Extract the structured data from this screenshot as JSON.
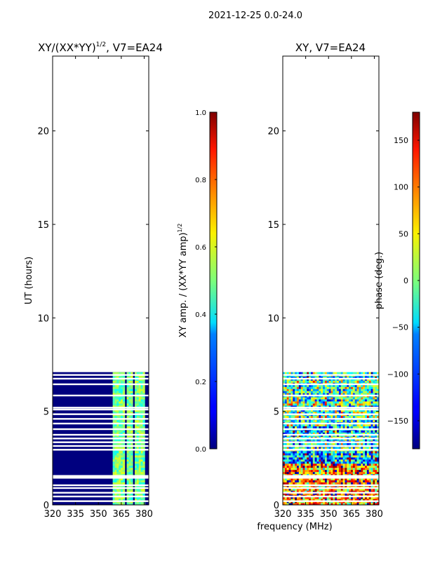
{
  "figure": {
    "suptitle": "2021-12-25 0.0-24.0",
    "shared_xlabel": "frequency (MHz)"
  },
  "chart_data": [
    {
      "type": "heatmap",
      "title_main": "XY/(XX*YY)",
      "title_sup": "1/2",
      "title_rest": ", V7=EA24",
      "ylabel": "UT (hours)",
      "xlim": [
        320,
        383
      ],
      "ylim": [
        0,
        24
      ],
      "xticks": [
        320,
        335,
        350,
        365,
        380
      ],
      "yticks": [
        0,
        5,
        10,
        15,
        20
      ],
      "data_extent_hours": [
        0,
        7.1
      ],
      "background_color": "#00007f",
      "flagged_hours": [
        0.2,
        0.45,
        0.65,
        0.9,
        1.05,
        1.45,
        1.5,
        1.55,
        2.95,
        3.15,
        3.35,
        3.55,
        3.75,
        4.05,
        4.35,
        4.6,
        4.85,
        5.1,
        5.2,
        5.85,
        6.45,
        6.75,
        6.95
      ],
      "bright_freq_bands_mhz": [
        [
          360,
          364
        ],
        [
          365,
          367
        ],
        [
          368,
          372
        ],
        [
          374,
          378
        ],
        [
          378,
          380
        ]
      ],
      "colorbar": {
        "label": "XY amp. / (XX*YY amp)",
        "label_sup": "1/2",
        "min": 0.0,
        "max": 1.0,
        "ticks": [
          "0.0",
          "0.2",
          "0.4",
          "0.6",
          "0.8",
          "1.0"
        ],
        "colormap": "jet"
      }
    },
    {
      "type": "heatmap",
      "title": "XY, V7=EA24",
      "xlim": [
        320,
        383
      ],
      "ylim": [
        0,
        24
      ],
      "xticks": [
        320,
        335,
        350,
        365,
        380
      ],
      "yticks": [
        0,
        5,
        10,
        15,
        20
      ],
      "data_extent_hours": [
        0,
        7.1
      ],
      "flagged_hours": [
        0.2,
        0.45,
        0.65,
        0.9,
        1.05,
        1.45,
        1.5,
        1.55,
        2.95,
        3.15,
        3.35,
        3.55,
        3.75,
        4.05,
        4.35,
        4.6,
        4.85,
        5.1,
        5.2,
        5.85,
        6.45,
        6.75,
        6.95
      ],
      "colorbar": {
        "label": "phase (deg.)",
        "min": -180,
        "max": 180,
        "ticks": [
          "150",
          "100",
          "50",
          "0",
          "−50",
          "−100",
          "−150"
        ],
        "tick_values": [
          150,
          100,
          50,
          0,
          -50,
          -100,
          -150
        ],
        "colormap": "jet"
      }
    }
  ]
}
